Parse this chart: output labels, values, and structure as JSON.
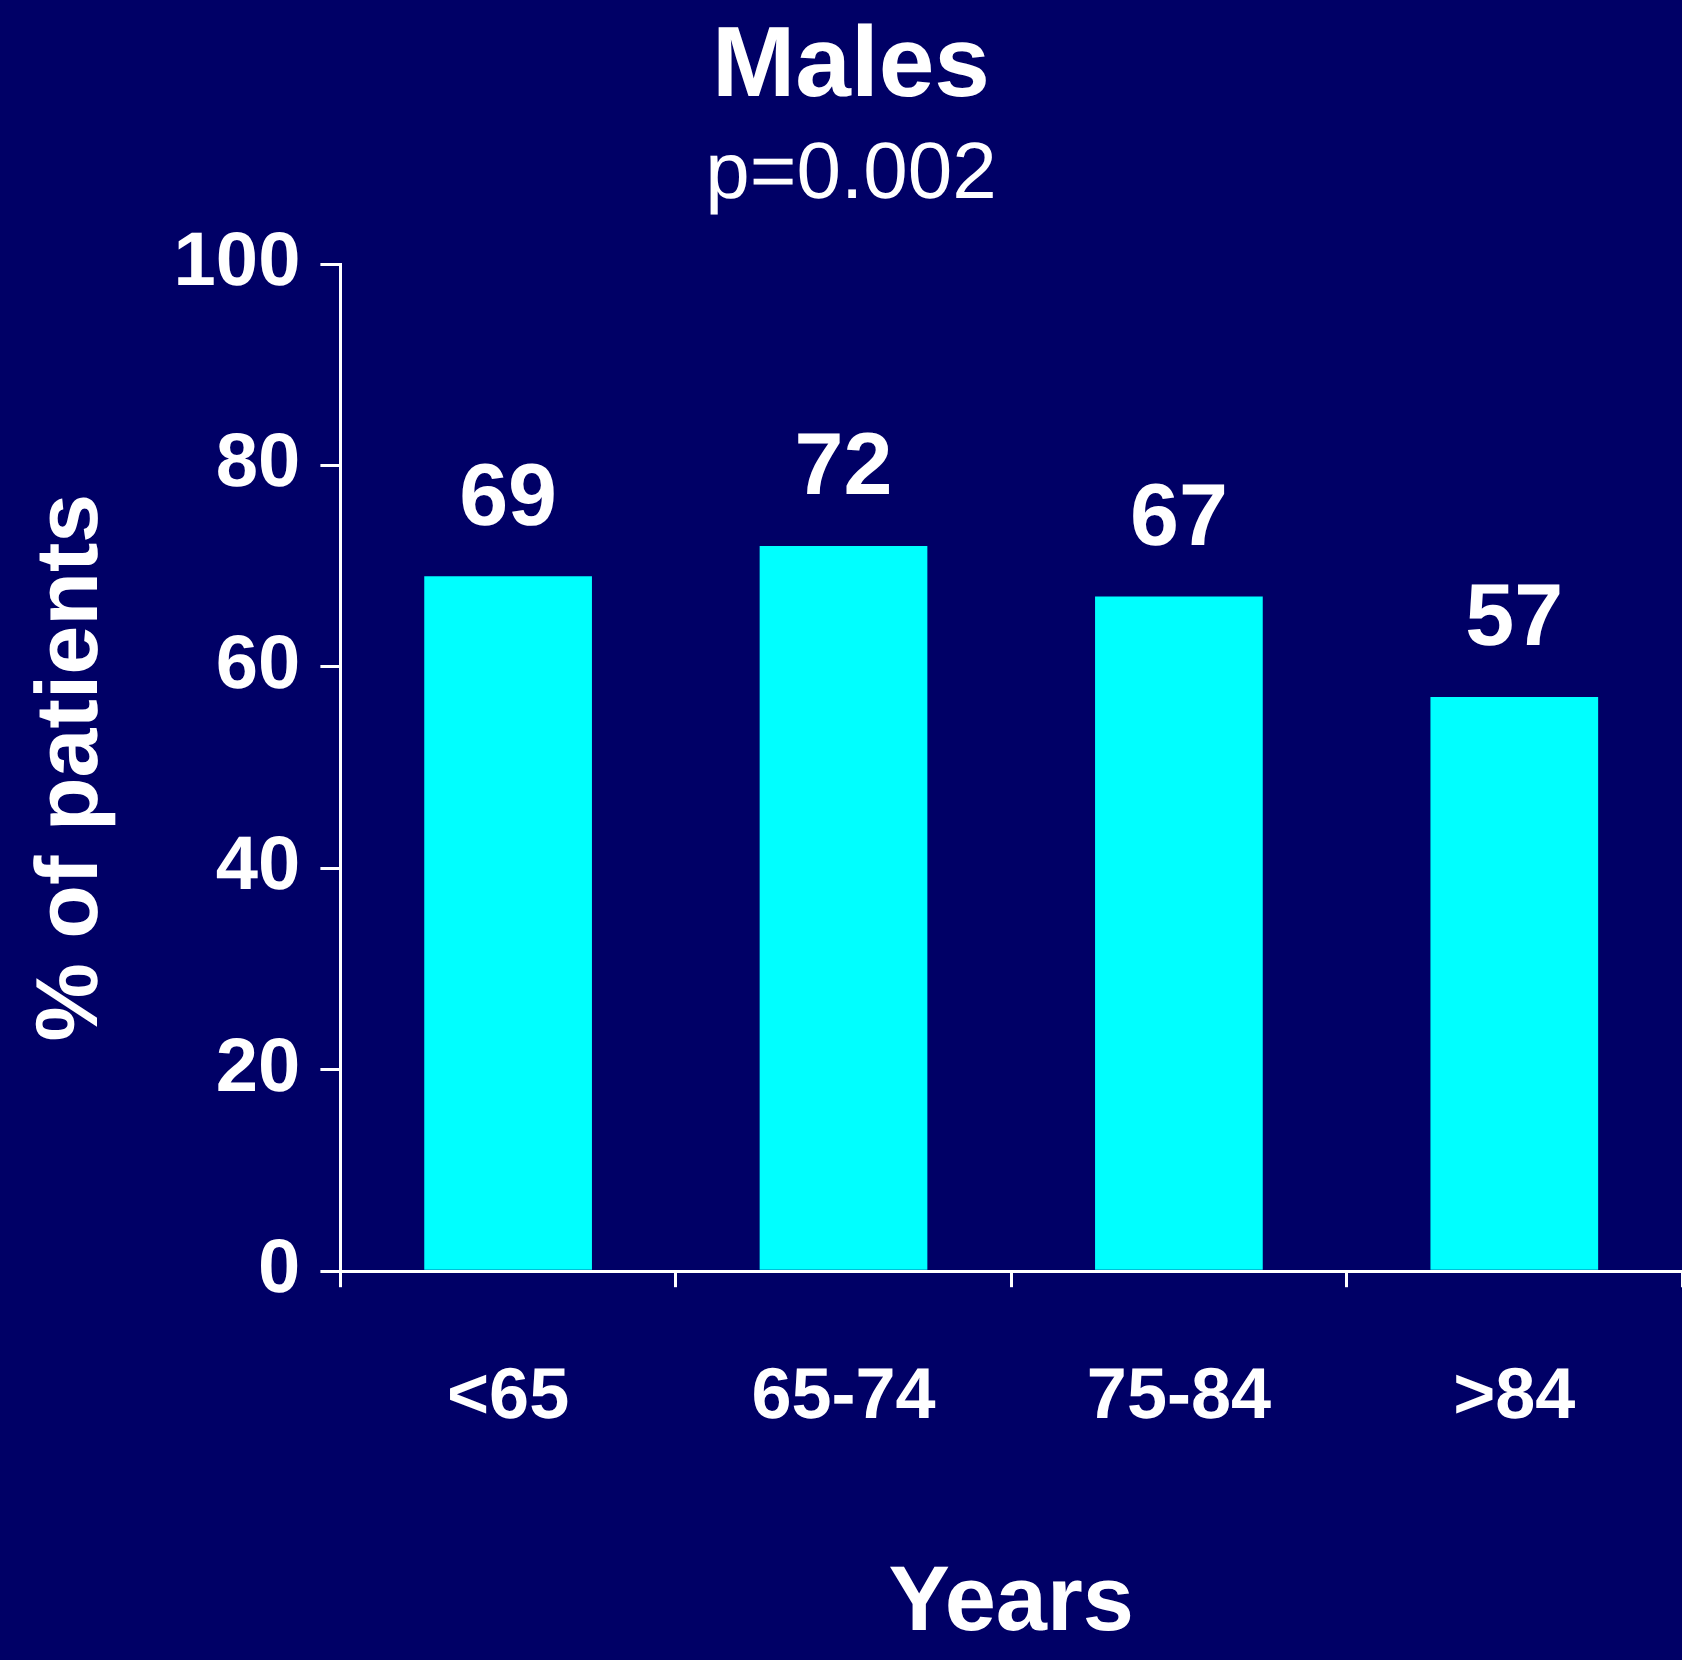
{
  "chart_data": {
    "type": "bar",
    "title": "Males",
    "subtitle": "p=0.002",
    "xlabel": "Years",
    "ylabel": "% of patients",
    "categories": [
      "<65",
      "65-74",
      "75-84",
      ">84"
    ],
    "values": [
      69,
      72,
      67,
      57
    ],
    "color": "#00ffff",
    "ylim": [
      0,
      100
    ],
    "yticks": [
      0,
      20,
      40,
      60,
      80,
      100
    ],
    "grid": false,
    "legend": false,
    "data_labels": true
  }
}
